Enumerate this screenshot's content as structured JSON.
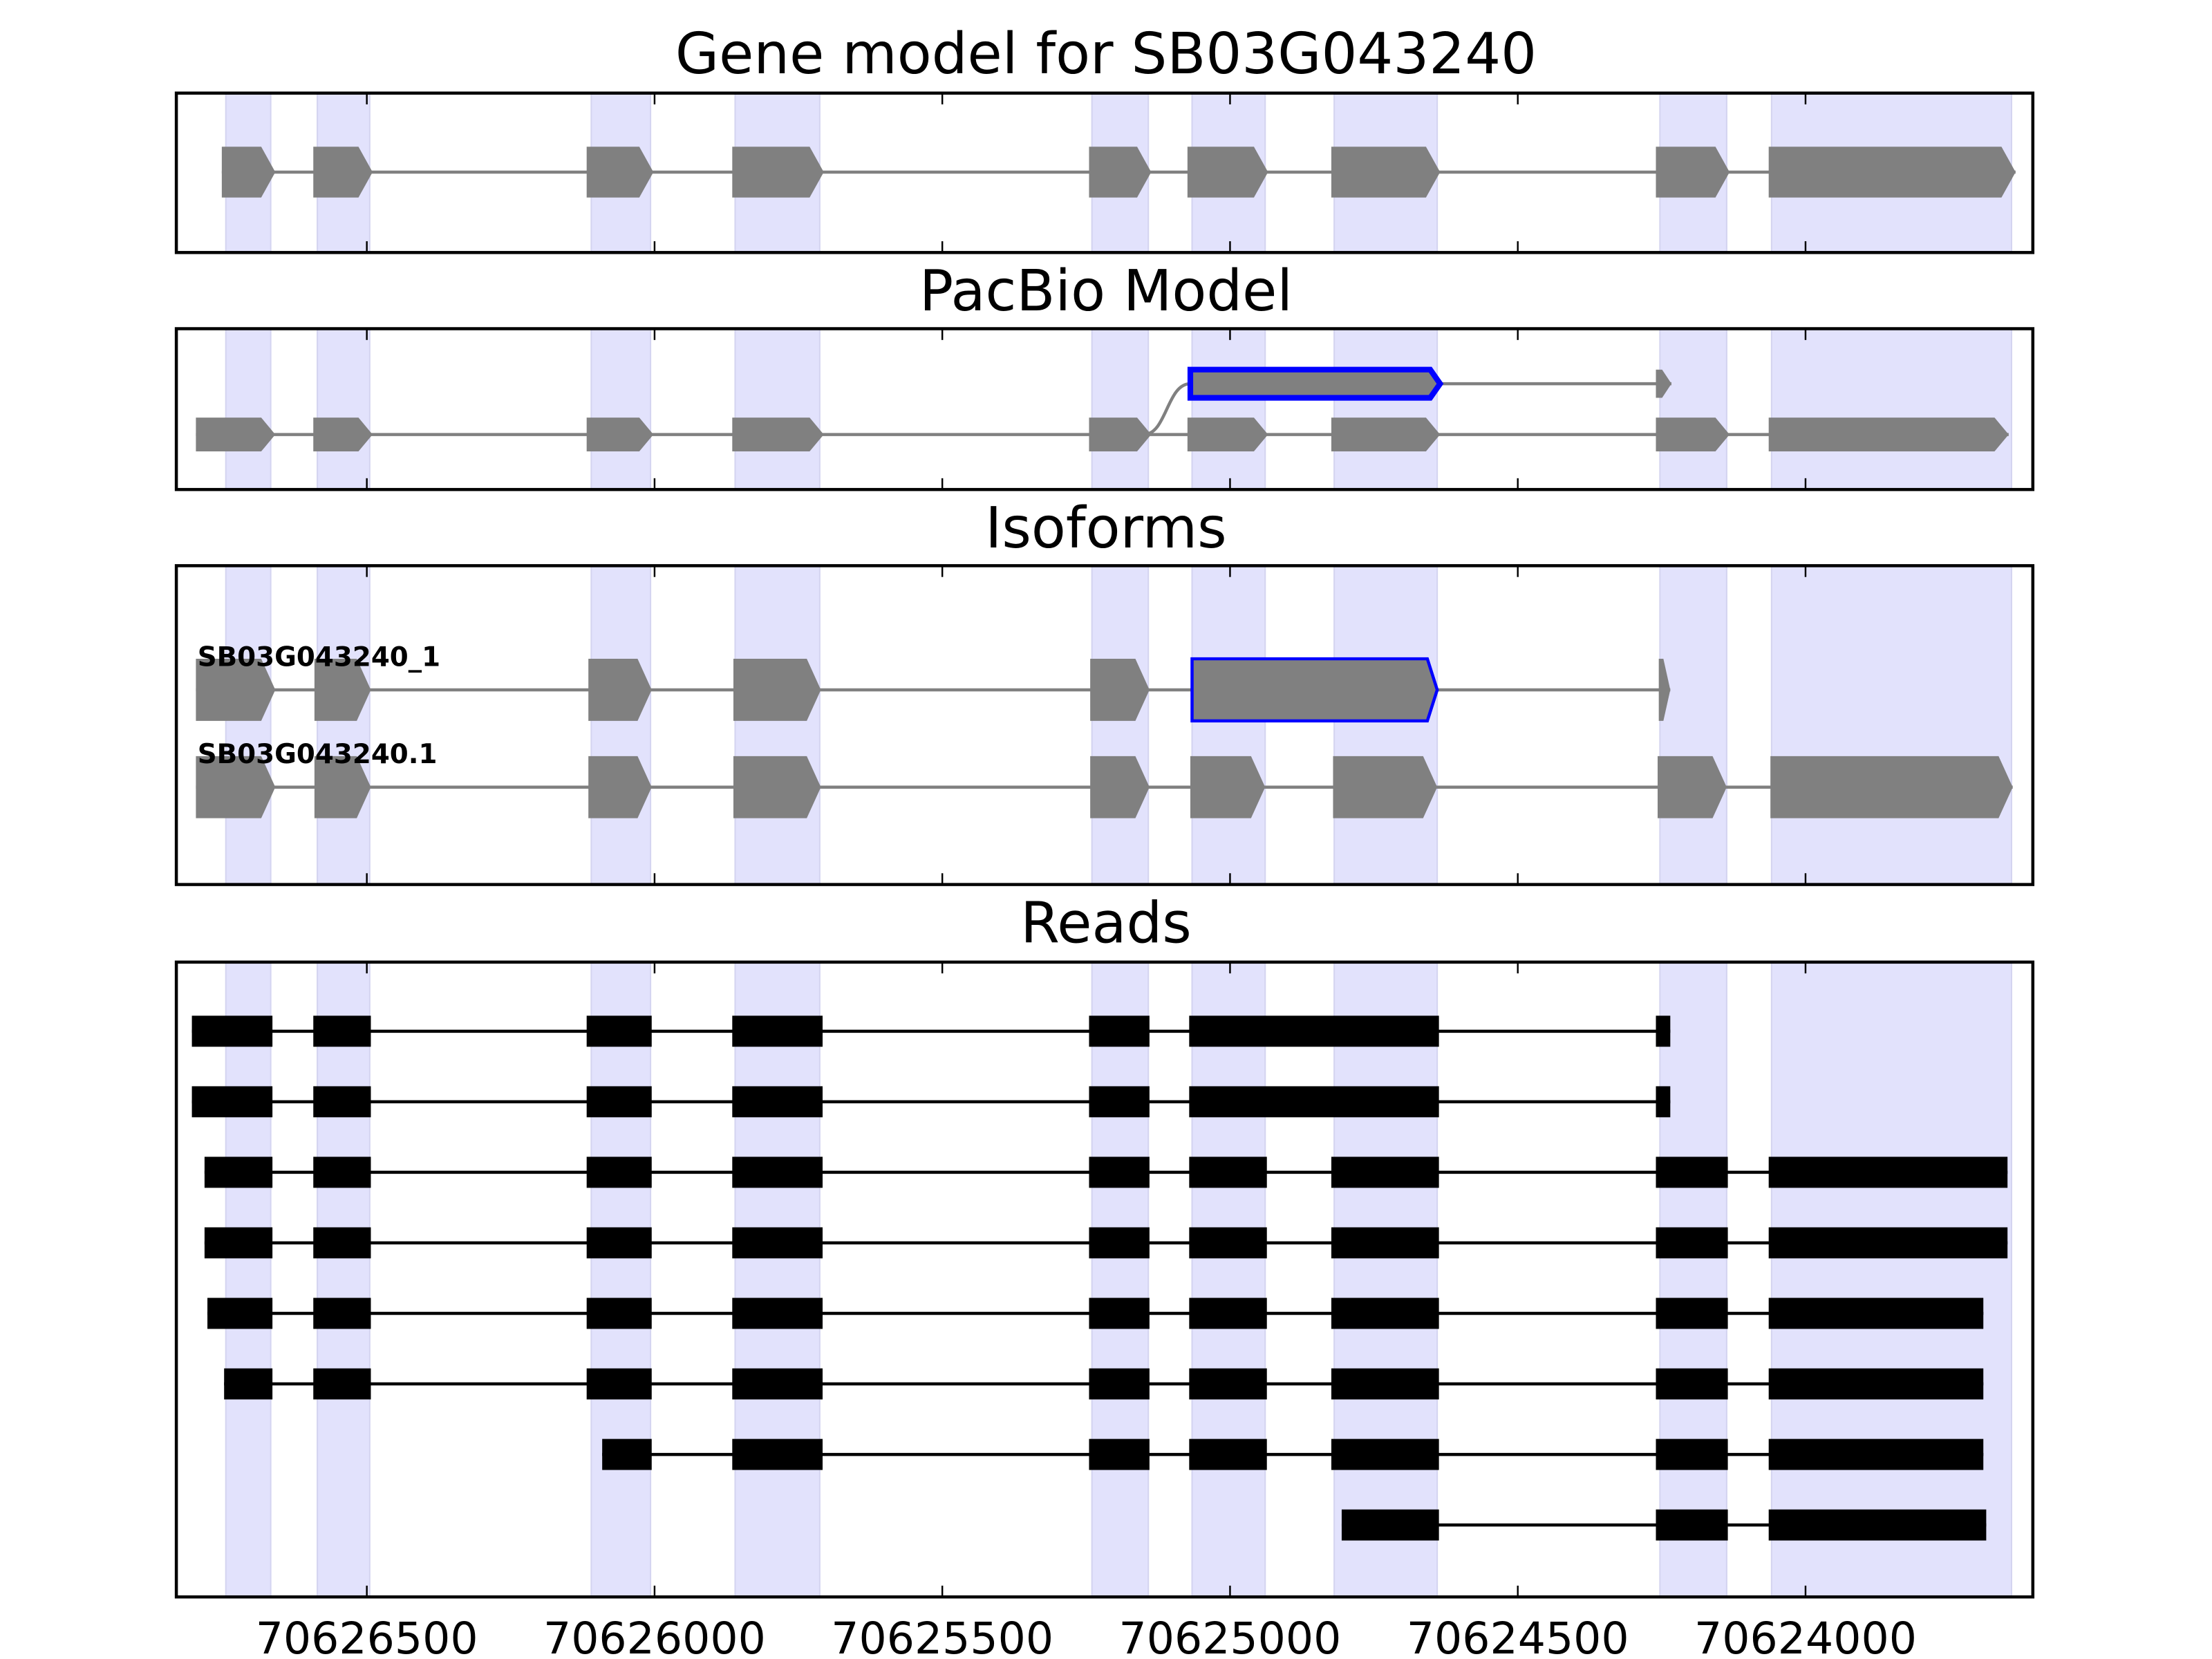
{
  "chart_data": {
    "type": "gene-track",
    "xlim": [
      70626831,
      70623605
    ],
    "xticks": [
      70626500,
      70626000,
      70625500,
      70625000,
      70624500,
      70624000
    ],
    "xtick_labels": [
      "70626500",
      "70626000",
      "70625500",
      "70625000",
      "70624500",
      "70624000"
    ],
    "colors": {
      "band": "#e2e2fc",
      "exon": "#808080",
      "highlight": "#0000ff",
      "read": "#000000"
    },
    "bands": [
      [
        70626745,
        70626667
      ],
      [
        70626586,
        70626495
      ],
      [
        70626110,
        70626007
      ],
      [
        70625860,
        70625713
      ],
      [
        70625240,
        70625142
      ],
      [
        70625066,
        70624939
      ],
      [
        70624819,
        70624640
      ],
      [
        70624253,
        70624137
      ],
      [
        70624059,
        70623642
      ]
    ],
    "panels": [
      {
        "title": "Gene model for SB03G043240",
        "tracks": [
          {
            "label": "",
            "exons": [
              [
                70626752,
                70626659
              ],
              [
                70626593,
                70626490
              ],
              [
                70626118,
                70626002
              ],
              [
                70625865,
                70625706
              ],
              [
                70625245,
                70625137
              ],
              [
                70625074,
                70624934
              ],
              [
                70624824,
                70624635
              ],
              [
                70624260,
                70624132
              ],
              [
                70624064,
                70623635
              ]
            ]
          }
        ]
      },
      {
        "title": "PacBio Model",
        "tracks": [
          {
            "label": "",
            "highlight_exon": 0,
            "exons": [
              [
                70625069,
                70624635
              ],
              [
                70624260,
                70624233
              ]
            ]
          },
          {
            "label": "",
            "exons": [
              [
                70626797,
                70626659
              ],
              [
                70626593,
                70626490
              ],
              [
                70626118,
                70626002
              ],
              [
                70625865,
                70625706
              ],
              [
                70625245,
                70625137
              ],
              [
                70625074,
                70624934
              ],
              [
                70624824,
                70624635
              ],
              [
                70624260,
                70624132
              ],
              [
                70624064,
                70623647
              ]
            ]
          }
        ]
      },
      {
        "title": "Isoforms",
        "tracks": [
          {
            "label": "SB03G043240_1",
            "highlight_exon": 5,
            "exons": [
              [
                70626797,
                70626659
              ],
              [
                70626591,
                70626493
              ],
              [
                70626115,
                70626005
              ],
              [
                70625863,
                70625711
              ],
              [
                70625243,
                70625140
              ],
              [
                70625066,
                70624640
              ],
              [
                70624255,
                70624235
              ]
            ]
          },
          {
            "label": "SB03G043240.1",
            "exons": [
              [
                70626797,
                70626659
              ],
              [
                70626591,
                70626493
              ],
              [
                70626115,
                70626005
              ],
              [
                70625863,
                70625711
              ],
              [
                70625243,
                70625140
              ],
              [
                70625069,
                70624939
              ],
              [
                70624821,
                70624640
              ],
              [
                70624257,
                70624137
              ],
              [
                70624061,
                70623640
              ]
            ]
          }
        ]
      },
      {
        "title": "Reads",
        "reads": [
          [
            [
              70626804,
              70626664
            ],
            [
              70626593,
              70626493
            ],
            [
              70626118,
              70626005
            ],
            [
              70625865,
              70625708
            ],
            [
              70625245,
              70625140
            ],
            [
              70625071,
              70624637
            ],
            [
              70624260,
              70624235
            ]
          ],
          [
            [
              70626804,
              70626664
            ],
            [
              70626593,
              70626493
            ],
            [
              70626118,
              70626005
            ],
            [
              70625865,
              70625708
            ],
            [
              70625245,
              70625140
            ],
            [
              70625071,
              70624637
            ],
            [
              70624260,
              70624235
            ]
          ],
          [
            [
              70626782,
              70626664
            ],
            [
              70626593,
              70626493
            ],
            [
              70626118,
              70626005
            ],
            [
              70625865,
              70625708
            ],
            [
              70625245,
              70625140
            ],
            [
              70625071,
              70624936
            ],
            [
              70624824,
              70624637
            ],
            [
              70624260,
              70624135
            ],
            [
              70624064,
              70623649
            ]
          ],
          [
            [
              70626782,
              70626664
            ],
            [
              70626593,
              70626493
            ],
            [
              70626118,
              70626005
            ],
            [
              70625865,
              70625708
            ],
            [
              70625245,
              70625140
            ],
            [
              70625071,
              70624936
            ],
            [
              70624824,
              70624637
            ],
            [
              70624260,
              70624135
            ],
            [
              70624064,
              70623649
            ]
          ],
          [
            [
              70626777,
              70626664
            ],
            [
              70626593,
              70626493
            ],
            [
              70626118,
              70626005
            ],
            [
              70625865,
              70625708
            ],
            [
              70625245,
              70625140
            ],
            [
              70625071,
              70624936
            ],
            [
              70624824,
              70624637
            ],
            [
              70624260,
              70624135
            ],
            [
              70624064,
              70623691
            ]
          ],
          [
            [
              70626748,
              70626664
            ],
            [
              70626593,
              70626493
            ],
            [
              70626118,
              70626005
            ],
            [
              70625865,
              70625708
            ],
            [
              70625245,
              70625140
            ],
            [
              70625071,
              70624936
            ],
            [
              70624824,
              70624637
            ],
            [
              70624260,
              70624135
            ],
            [
              70624064,
              70623691
            ]
          ],
          [
            [
              70626091,
              70626005
            ],
            [
              70625865,
              70625708
            ],
            [
              70625245,
              70625140
            ],
            [
              70625071,
              70624936
            ],
            [
              70624824,
              70624637
            ],
            [
              70624260,
              70624135
            ],
            [
              70624064,
              70623691
            ]
          ],
          [
            [
              70624806,
              70624637
            ],
            [
              70624260,
              70624135
            ],
            [
              70624064,
              70623686
            ]
          ]
        ]
      }
    ]
  }
}
